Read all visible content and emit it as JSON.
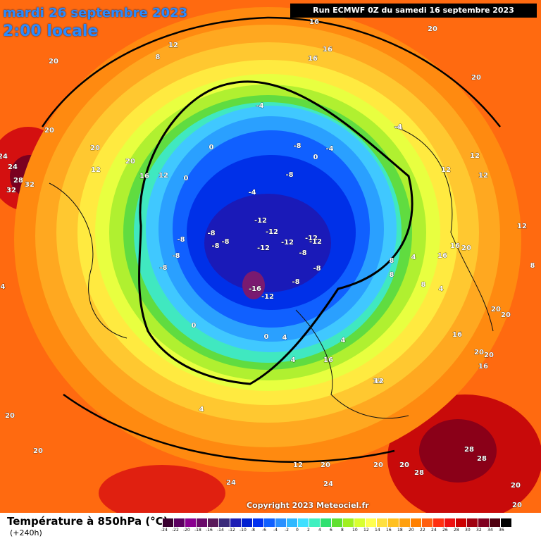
{
  "header": {
    "date_title": "mardi 26 septembre 2023",
    "time_title": "2:00 locale",
    "run_info": "Run ECMWF 0Z du samedi 16 septembre 2023"
  },
  "copyright": "Copyright 2023 Meteociel.fr",
  "legend": {
    "title": "Température à 850hPa (°C)",
    "subtitle": "(+240h)",
    "scale": [
      {
        "v": "-24",
        "c": "#3a0030"
      },
      {
        "v": "-22",
        "c": "#5c0060"
      },
      {
        "v": "-20",
        "c": "#8a0090"
      },
      {
        "v": "-18",
        "c": "#6a0a6a"
      },
      {
        "v": "-16",
        "c": "#5a1a5a"
      },
      {
        "v": "-14",
        "c": "#3a2a7a"
      },
      {
        "v": "-12",
        "c": "#1e1eb4"
      },
      {
        "v": "-10",
        "c": "#0020d0"
      },
      {
        "v": "-8",
        "c": "#0030f0"
      },
      {
        "v": "-6",
        "c": "#1060ff"
      },
      {
        "v": "-4",
        "c": "#2a90ff"
      },
      {
        "v": "-2",
        "c": "#30b8ff"
      },
      {
        "v": "0",
        "c": "#40e0ff"
      },
      {
        "v": "2",
        "c": "#40f0c0"
      },
      {
        "v": "4",
        "c": "#30e070"
      },
      {
        "v": "6",
        "c": "#60e030"
      },
      {
        "v": "8",
        "c": "#a0f020"
      },
      {
        "v": "10",
        "c": "#d8ff30"
      },
      {
        "v": "12",
        "c": "#ffff50"
      },
      {
        "v": "14",
        "c": "#ffe040"
      },
      {
        "v": "16",
        "c": "#ffc020"
      },
      {
        "v": "18",
        "c": "#ffa010"
      },
      {
        "v": "20",
        "c": "#ff8000"
      },
      {
        "v": "22",
        "c": "#ff6010"
      },
      {
        "v": "24",
        "c": "#ff3010"
      },
      {
        "v": "26",
        "c": "#ee1010"
      },
      {
        "v": "28",
        "c": "#cc0000"
      },
      {
        "v": "30",
        "c": "#a00010"
      },
      {
        "v": "32",
        "c": "#800020"
      },
      {
        "v": "34",
        "c": "#500010"
      },
      {
        "v": "36",
        "c": "#000000"
      }
    ]
  },
  "map_labels": [
    {
      "t": "16"
    },
    {
      "t": "20"
    },
    {
      "t": "16"
    },
    {
      "t": "16"
    },
    {
      "t": "12"
    },
    {
      "t": "8"
    },
    {
      "t": "20"
    },
    {
      "t": "20"
    },
    {
      "t": "24"
    },
    {
      "t": "24"
    },
    {
      "t": "28"
    },
    {
      "t": "32"
    },
    {
      "t": "32"
    },
    {
      "t": "20"
    },
    {
      "t": "20"
    },
    {
      "t": "12"
    },
    {
      "t": "16"
    },
    {
      "t": "12"
    },
    {
      "t": "0"
    },
    {
      "t": "0"
    },
    {
      "t": "-4"
    },
    {
      "t": "-4"
    },
    {
      "t": "-8"
    },
    {
      "t": "-4"
    },
    {
      "t": "0"
    },
    {
      "t": "-8"
    },
    {
      "t": "-4"
    },
    {
      "t": "-12"
    },
    {
      "t": "-8"
    },
    {
      "t": "-8"
    },
    {
      "t": "-12"
    },
    {
      "t": "-12"
    },
    {
      "t": "-12"
    },
    {
      "t": "-12"
    },
    {
      "t": "-8"
    },
    {
      "t": "-8"
    },
    {
      "t": "-8"
    },
    {
      "t": "-8"
    },
    {
      "t": "-8"
    },
    {
      "t": "-12"
    },
    {
      "t": "-16"
    },
    {
      "t": "-12"
    },
    {
      "t": "-8"
    },
    {
      "t": "-8"
    },
    {
      "t": "0"
    },
    {
      "t": "0"
    },
    {
      "t": "4"
    },
    {
      "t": "4"
    },
    {
      "t": "4"
    },
    {
      "t": "4"
    },
    {
      "t": "12"
    },
    {
      "t": "8"
    },
    {
      "t": "8"
    },
    {
      "t": "4"
    },
    {
      "t": "8"
    },
    {
      "t": "4"
    },
    {
      "t": "-4"
    },
    {
      "t": "12"
    },
    {
      "t": "12"
    },
    {
      "t": "12"
    },
    {
      "t": "16"
    },
    {
      "t": "20"
    },
    {
      "t": "16"
    },
    {
      "t": "8"
    },
    {
      "t": "12"
    },
    {
      "t": "16"
    },
    {
      "t": "20"
    },
    {
      "t": "20"
    },
    {
      "t": "20"
    },
    {
      "t": "20"
    },
    {
      "t": "16"
    },
    {
      "t": "20"
    },
    {
      "t": "16"
    },
    {
      "t": "12"
    },
    {
      "t": "12"
    },
    {
      "t": "20"
    },
    {
      "t": "20"
    },
    {
      "t": "20"
    },
    {
      "t": "28"
    },
    {
      "t": "28"
    },
    {
      "t": "28"
    },
    {
      "t": "20"
    },
    {
      "t": "20"
    },
    {
      "t": "24"
    },
    {
      "t": "24"
    },
    {
      "t": "20"
    },
    {
      "t": "20"
    },
    {
      "t": "4"
    }
  ]
}
